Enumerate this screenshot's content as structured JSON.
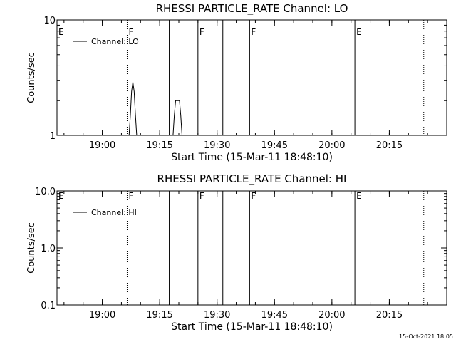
{
  "footer_date": "15-Oct-2021 18:05",
  "chart_data": [
    {
      "type": "line",
      "title": "RHESSI PARTICLE_RATE Channel: LO",
      "xlabel": "Start Time (15-Mar-11 18:48:10)",
      "ylabel": "Counts/sec",
      "yscale": "log",
      "ylim": [
        1,
        10
      ],
      "yticks": [
        {
          "v": 1,
          "label": "1"
        },
        {
          "v": 10,
          "label": "10"
        }
      ],
      "xlim": [
        "18:48:10",
        "20:30:00"
      ],
      "xticks": [
        "19:00",
        "19:15",
        "19:30",
        "19:45",
        "20:00",
        "20:15"
      ],
      "legend": {
        "label": "Channel: LO",
        "placement": "top-left"
      },
      "markers": [
        {
          "time": "18:48:10",
          "label": "E",
          "style": "none"
        },
        {
          "time": "19:06:30",
          "label": "F",
          "style": "dotted"
        },
        {
          "time": "19:17:30",
          "label": "",
          "style": "solid"
        },
        {
          "time": "19:25:00",
          "label": "F",
          "style": "solid"
        },
        {
          "time": "19:31:30",
          "label": "",
          "style": "solid"
        },
        {
          "time": "19:38:30",
          "label": "F",
          "style": "solid"
        },
        {
          "time": "20:06:00",
          "label": "E",
          "style": "solid"
        },
        {
          "time": "20:24:00",
          "label": "",
          "style": "dotted"
        }
      ],
      "series": [
        {
          "name": "Channel: LO",
          "segments": [
            [
              [
                "19:07:00",
                1
              ],
              [
                "19:07:20",
                1.5
              ],
              [
                "19:07:40",
                2.4
              ],
              [
                "19:08:00",
                2.9
              ],
              [
                "19:08:20",
                2.4
              ],
              [
                "19:08:40",
                1.5
              ],
              [
                "19:09:00",
                1
              ]
            ],
            [
              [
                "19:18:30",
                1
              ],
              [
                "19:18:50",
                1.5
              ],
              [
                "19:19:10",
                2
              ],
              [
                "19:20:10",
                2
              ],
              [
                "19:20:30",
                1.5
              ],
              [
                "19:20:50",
                1
              ]
            ]
          ]
        }
      ]
    },
    {
      "type": "line",
      "title": "RHESSI PARTICLE_RATE Channel: HI",
      "xlabel": "Start Time (15-Mar-11 18:48:10)",
      "ylabel": "Counts/sec",
      "yscale": "log",
      "ylim": [
        0.1,
        10
      ],
      "yticks": [
        {
          "v": 0.1,
          "label": "0.1"
        },
        {
          "v": 1,
          "label": "1.0"
        },
        {
          "v": 10,
          "label": "10.0"
        }
      ],
      "xlim": [
        "18:48:10",
        "20:30:00"
      ],
      "xticks": [
        "19:00",
        "19:15",
        "19:30",
        "19:45",
        "20:00",
        "20:15"
      ],
      "legend": {
        "label": "Channel: HI",
        "placement": "top-left"
      },
      "markers": [
        {
          "time": "18:48:10",
          "label": "E",
          "style": "none"
        },
        {
          "time": "19:06:30",
          "label": "F",
          "style": "dotted"
        },
        {
          "time": "19:17:30",
          "label": "",
          "style": "solid"
        },
        {
          "time": "19:25:00",
          "label": "F",
          "style": "solid"
        },
        {
          "time": "19:31:30",
          "label": "",
          "style": "solid"
        },
        {
          "time": "19:38:30",
          "label": "F",
          "style": "solid"
        },
        {
          "time": "20:06:00",
          "label": "E",
          "style": "solid"
        },
        {
          "time": "20:24:00",
          "label": "",
          "style": "dotted"
        }
      ],
      "series": [
        {
          "name": "Channel: HI",
          "segments": []
        }
      ]
    }
  ]
}
